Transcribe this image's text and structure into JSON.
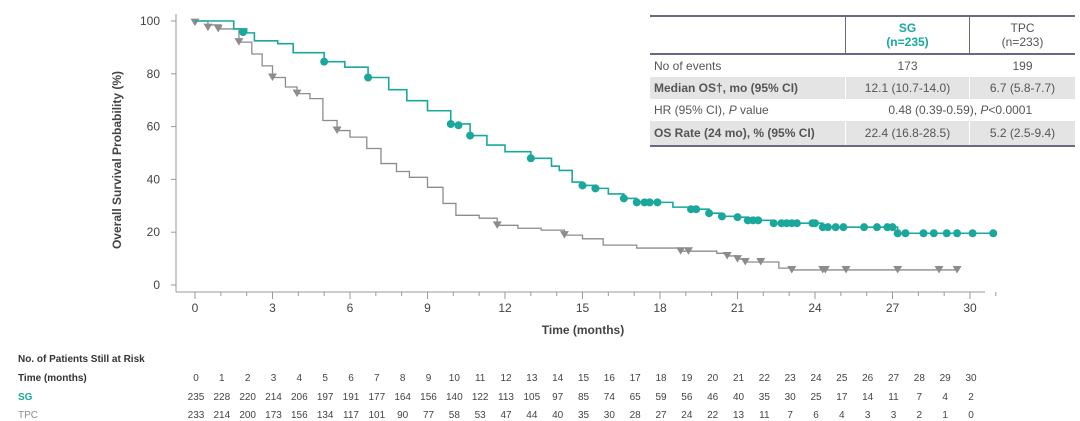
{
  "chart_data": {
    "type": "line",
    "subtype": "kaplan-meier",
    "xlabel": "Time (months)",
    "ylabel": "Overall Survival Probability (%)",
    "xlim": [
      0,
      30
    ],
    "ylim": [
      0,
      100
    ],
    "xticks": [
      0,
      3,
      6,
      9,
      12,
      15,
      18,
      21,
      24,
      27,
      30
    ],
    "yticks": [
      0,
      20,
      40,
      60,
      80,
      100
    ],
    "grid": false,
    "series": [
      {
        "name": "SG",
        "color": "#1aa89c",
        "marker": "circle",
        "steps": [
          [
            0,
            100
          ],
          [
            1.5,
            97
          ],
          [
            2.0,
            95.5
          ],
          [
            2.3,
            92.5
          ],
          [
            3.2,
            91.4
          ],
          [
            3.8,
            88
          ],
          [
            5.0,
            84.6
          ],
          [
            5.8,
            82.5
          ],
          [
            6.7,
            78.6
          ],
          [
            7.5,
            74
          ],
          [
            8.2,
            69.8
          ],
          [
            9.0,
            66
          ],
          [
            9.9,
            61
          ],
          [
            10.65,
            56.6
          ],
          [
            11.3,
            53
          ],
          [
            12.0,
            50.5
          ],
          [
            13.0,
            48
          ],
          [
            13.8,
            45
          ],
          [
            14.1,
            43.4
          ],
          [
            14.6,
            39
          ],
          [
            15.0,
            37.7
          ],
          [
            15.5,
            36.6
          ],
          [
            16.0,
            34.5
          ],
          [
            16.6,
            32.8
          ],
          [
            17.1,
            31.3
          ],
          [
            18.5,
            29.5
          ],
          [
            19.3,
            28.7
          ],
          [
            19.9,
            27.2
          ],
          [
            20.4,
            26
          ],
          [
            21.0,
            25.7
          ],
          [
            21.4,
            24.5
          ],
          [
            22.4,
            23.4
          ],
          [
            24.3,
            21.9
          ],
          [
            27.2,
            19.6
          ],
          [
            30.9,
            19.6
          ]
        ],
        "censored": [
          [
            1.86,
            95.8
          ],
          [
            5.0,
            84.6
          ],
          [
            6.7,
            78.6
          ],
          [
            9.9,
            61
          ],
          [
            10.2,
            60.5
          ],
          [
            10.65,
            56.6
          ],
          [
            13.0,
            48
          ],
          [
            15.0,
            37.7
          ],
          [
            15.5,
            36.6
          ],
          [
            16.6,
            32.8
          ],
          [
            17.1,
            31.3
          ],
          [
            17.4,
            31.3
          ],
          [
            17.6,
            31.3
          ],
          [
            17.9,
            31.3
          ],
          [
            19.2,
            28.7
          ],
          [
            19.4,
            28.7
          ],
          [
            19.9,
            27.2
          ],
          [
            20.4,
            26
          ],
          [
            21.0,
            25.7
          ],
          [
            21.4,
            24.5
          ],
          [
            21.6,
            24.5
          ],
          [
            21.8,
            24.5
          ],
          [
            22.4,
            23.4
          ],
          [
            22.7,
            23.4
          ],
          [
            22.9,
            23.4
          ],
          [
            23.1,
            23.4
          ],
          [
            23.3,
            23.4
          ],
          [
            23.9,
            23.4
          ],
          [
            24.0,
            23.4
          ],
          [
            24.3,
            21.9
          ],
          [
            24.5,
            21.9
          ],
          [
            24.8,
            21.9
          ],
          [
            25.1,
            21.9
          ],
          [
            25.9,
            21.9
          ],
          [
            26.4,
            21.9
          ],
          [
            26.8,
            21.9
          ],
          [
            27.0,
            21.9
          ],
          [
            27.2,
            19.6
          ],
          [
            27.5,
            19.6
          ],
          [
            28.2,
            19.6
          ],
          [
            28.6,
            19.6
          ],
          [
            29.1,
            19.6
          ],
          [
            29.5,
            19.6
          ],
          [
            30.1,
            19.6
          ],
          [
            30.9,
            19.6
          ]
        ]
      },
      {
        "name": "TPC",
        "color": "#8c8c8c",
        "marker": "triangle-down",
        "steps": [
          [
            0,
            100
          ],
          [
            0.5,
            98.5
          ],
          [
            1.0,
            97
          ],
          [
            1.7,
            92
          ],
          [
            2.2,
            87.5
          ],
          [
            2.6,
            83
          ],
          [
            3.0,
            78.6
          ],
          [
            3.5,
            75
          ],
          [
            3.95,
            72.5
          ],
          [
            4.45,
            70.6
          ],
          [
            4.95,
            62.3
          ],
          [
            5.5,
            58.5
          ],
          [
            6.0,
            56
          ],
          [
            6.65,
            51.7
          ],
          [
            7.2,
            46
          ],
          [
            7.8,
            43
          ],
          [
            8.3,
            40.8
          ],
          [
            9.0,
            37
          ],
          [
            9.6,
            30.9
          ],
          [
            10.1,
            26.4
          ],
          [
            11.0,
            25.3
          ],
          [
            11.7,
            22.6
          ],
          [
            12.5,
            21.5
          ],
          [
            13.4,
            20.8
          ],
          [
            14.3,
            18.9
          ],
          [
            15.0,
            17.5
          ],
          [
            15.8,
            15.1
          ],
          [
            17.1,
            14
          ],
          [
            18.8,
            12.8
          ],
          [
            20.2,
            12
          ],
          [
            20.6,
            11
          ],
          [
            21.0,
            9.8
          ],
          [
            21.3,
            8.7
          ],
          [
            22.6,
            6.4
          ],
          [
            23.1,
            5.7
          ],
          [
            29.5,
            5.7
          ]
        ],
        "censored": [
          [
            0,
            99.4
          ],
          [
            0.5,
            97.5
          ],
          [
            0.9,
            97
          ],
          [
            1.7,
            92
          ],
          [
            3.0,
            78.6
          ],
          [
            3.95,
            72.5
          ],
          [
            5.5,
            58.5
          ],
          [
            11.7,
            22.6
          ],
          [
            14.3,
            18.9
          ],
          [
            18.8,
            12.8
          ],
          [
            19.1,
            12.8
          ],
          [
            20.6,
            11
          ],
          [
            21.0,
            9.8
          ],
          [
            21.3,
            8.7
          ],
          [
            21.9,
            8.7
          ],
          [
            23.1,
            5.7
          ],
          [
            24.3,
            5.7
          ],
          [
            24.4,
            5.7
          ],
          [
            25.2,
            5.7
          ],
          [
            27.2,
            5.7
          ],
          [
            28.8,
            5.7
          ],
          [
            29.5,
            5.7
          ]
        ]
      }
    ]
  },
  "summary_table": {
    "headers": [
      "",
      "SG\n(n=235)",
      "TPC\n(n=233)"
    ],
    "sg_header": [
      "SG",
      "(n=235)"
    ],
    "tpc_header": [
      "TPC",
      "(n=233)"
    ],
    "rows": [
      {
        "label": "No of events",
        "sg": "173",
        "tpc": "199"
      },
      {
        "label": "Median OS†, mo (95% CI)",
        "sg": "12.1 (10.7-14.0)",
        "tpc": "6.7 (5.8-7.7)"
      },
      {
        "label_pre": "HR (95% CI), ",
        "label_italic": "P",
        "label_post": " value",
        "combined_pre": "0.48 (0.39-0.59), ",
        "combined_italic": "P",
        "combined_post": "<0.0001"
      },
      {
        "label": "OS Rate (24 mo), % (95% CI)",
        "sg": "22.4 (16.8-28.5)",
        "tpc": "5.2 (2.5-9.4)"
      }
    ]
  },
  "risk_table": {
    "title": "No. of Patients Still at Risk",
    "time_label": "Time (months)",
    "times": [
      0,
      1,
      2,
      3,
      4,
      5,
      6,
      7,
      8,
      9,
      10,
      11,
      12,
      13,
      14,
      15,
      16,
      17,
      18,
      19,
      20,
      21,
      22,
      23,
      24,
      25,
      26,
      27,
      28,
      29,
      30
    ],
    "rows": [
      {
        "label": "SG",
        "color": "#1aa89c",
        "values": [
          235,
          228,
          220,
          214,
          206,
          197,
          191,
          177,
          164,
          156,
          140,
          122,
          113,
          105,
          97,
          85,
          74,
          65,
          59,
          56,
          46,
          40,
          35,
          30,
          25,
          17,
          14,
          11,
          7,
          4,
          2
        ]
      },
      {
        "label": "TPC",
        "color": "#8c8c8c",
        "values": [
          233,
          214,
          200,
          173,
          156,
          134,
          117,
          101,
          90,
          77,
          58,
          53,
          47,
          44,
          40,
          35,
          30,
          28,
          27,
          24,
          22,
          13,
          11,
          7,
          6,
          4,
          3,
          3,
          2,
          1,
          0
        ]
      }
    ]
  }
}
